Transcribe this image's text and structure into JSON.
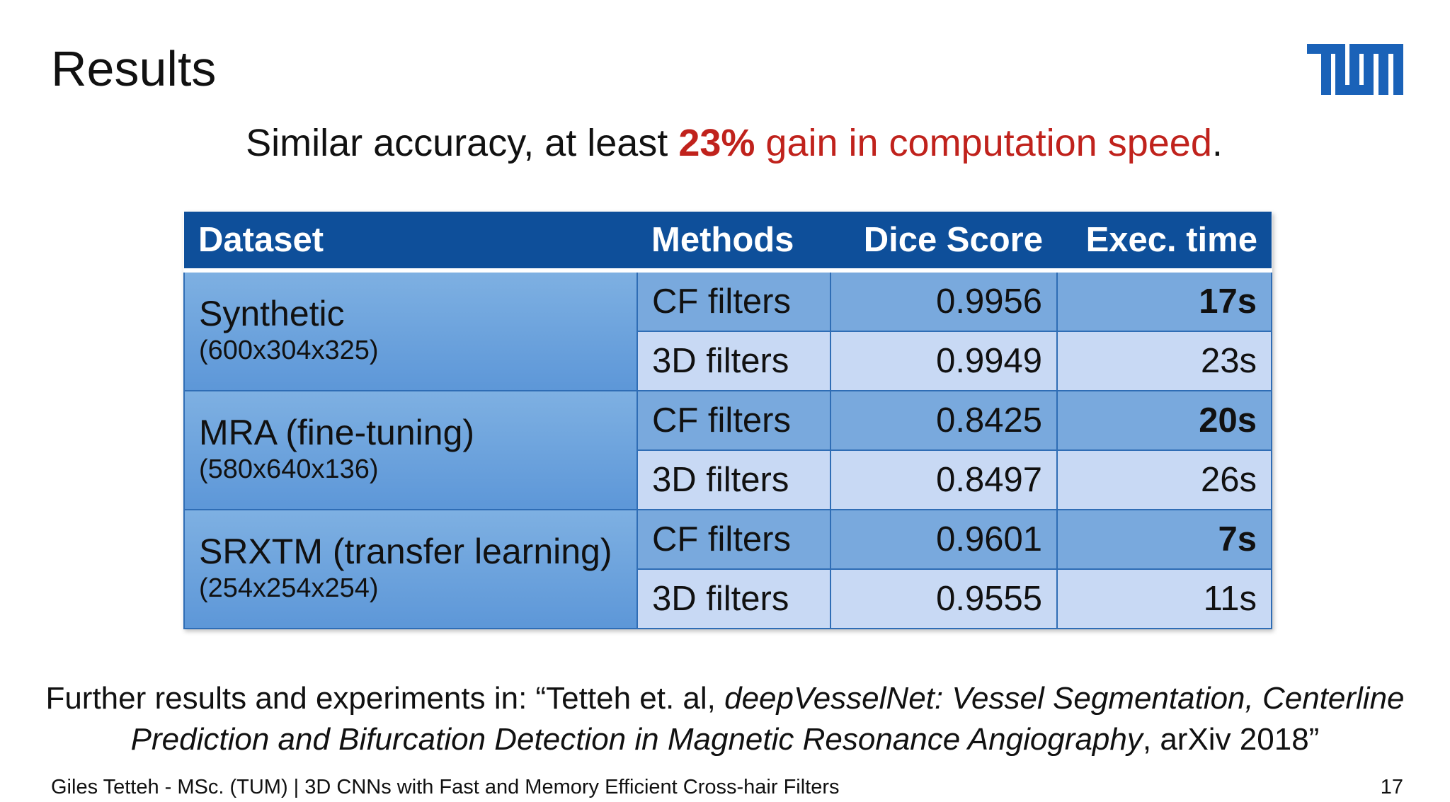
{
  "slide": {
    "title": "Results",
    "subtitle": {
      "prefix": "Similar accuracy, at least ",
      "highlight": "23%",
      "gain_text": " gain in computation speed",
      "suffix": "."
    },
    "logo": {
      "icon": "tum-logo",
      "color": "#1a62b8"
    },
    "table": {
      "headers": [
        "Dataset",
        "Methods",
        "Dice Score",
        "Exec. time"
      ],
      "groups": [
        {
          "name": "Synthetic",
          "dims": "(600x304x325)",
          "rows": [
            {
              "method": "CF filters",
              "dice": "0.9956",
              "time": "17s",
              "bold": true
            },
            {
              "method": "3D filters",
              "dice": "0.9949",
              "time": "23s",
              "bold": false
            }
          ]
        },
        {
          "name": "MRA (fine-tuning)",
          "dims": "(580x640x136)",
          "rows": [
            {
              "method": "CF filters",
              "dice": "0.8425",
              "time": "20s",
              "bold": true
            },
            {
              "method": "3D filters",
              "dice": "0.8497",
              "time": "26s",
              "bold": false
            }
          ]
        },
        {
          "name": "SRXTM (transfer learning)",
          "dims": "(254x254x254)",
          "rows": [
            {
              "method": "CF filters",
              "dice": "0.9601",
              "time": "7s",
              "bold": true
            },
            {
              "method": "3D filters",
              "dice": "0.9555",
              "time": "11s",
              "bold": false
            }
          ]
        }
      ]
    },
    "reference": {
      "line1_prefix": "Further results and experiments in: “Tetteh et. al, ",
      "line1_italic": "deepVesselNet: Vessel Segmentation, Centerline",
      "line2_italic": "Prediction and Bifurcation Detection in Magnetic Resonance Angiography",
      "line2_suffix": ", arXiv 2018”"
    },
    "footer": "Giles Tetteh - MSc. (TUM) | 3D CNNs with Fast and Memory Efficient Cross-hair Filters",
    "page_number": "17",
    "colors": {
      "header": "#0e4f9a",
      "highlight": "#c0221c",
      "cf_row": "#79a9dd",
      "td_row": "#c8d9f4"
    }
  }
}
